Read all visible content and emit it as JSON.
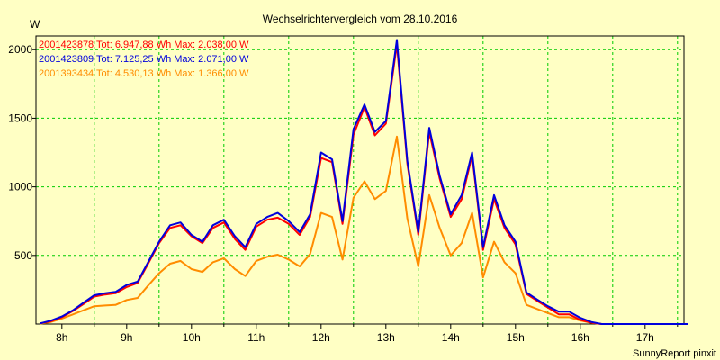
{
  "chart_data": {
    "type": "line",
    "title": "Wechselrichtervergleich vom 28.10.2016",
    "ylabel": "W",
    "xlabel": "",
    "footer": "SunnyReport pinxit",
    "ylim": [
      0,
      2100
    ],
    "xlim": [
      7.6,
      17.6
    ],
    "y_ticks": [
      500,
      1000,
      1500,
      2000
    ],
    "x_ticks": [
      8,
      9,
      10,
      11,
      12,
      13,
      14,
      15,
      16,
      17
    ],
    "x_tick_labels": [
      "8h",
      "9h",
      "10h",
      "11h",
      "12h",
      "13h",
      "14h",
      "15h",
      "16h",
      "17h"
    ],
    "x_minor_ticks": [
      8.5,
      9.5,
      10.5,
      11.5,
      12.5,
      13.5,
      14.5,
      15.5,
      16.5,
      17.5
    ],
    "grid": true,
    "grid_color": "#00cc00",
    "background_color": "#ffffc4",
    "legend_position": "top-left",
    "x": [
      7.67,
      7.83,
      8.0,
      8.17,
      8.33,
      8.5,
      8.67,
      8.83,
      9.0,
      9.17,
      9.33,
      9.5,
      9.67,
      9.83,
      10.0,
      10.17,
      10.33,
      10.5,
      10.67,
      10.83,
      11.0,
      11.17,
      11.33,
      11.5,
      11.67,
      11.83,
      12.0,
      12.17,
      12.33,
      12.5,
      12.67,
      12.83,
      13.0,
      13.17,
      13.33,
      13.5,
      13.67,
      13.83,
      14.0,
      14.17,
      14.33,
      14.5,
      14.67,
      14.83,
      15.0,
      15.17,
      15.33,
      15.5,
      15.67,
      15.83,
      16.0,
      16.17,
      16.33,
      16.5,
      16.67,
      16.83,
      17.0,
      17.17,
      17.33,
      17.5,
      17.67
    ],
    "series": [
      {
        "name": "2001423878",
        "label": "2001423878 Tot: 6.947,88 Wh Max: 2.038,00 W",
        "color": "#ff0000",
        "values": [
          5,
          20,
          50,
          95,
          145,
          200,
          215,
          225,
          270,
          300,
          440,
          590,
          700,
          720,
          640,
          590,
          700,
          740,
          620,
          540,
          710,
          760,
          775,
          730,
          650,
          780,
          1210,
          1180,
          730,
          1380,
          1580,
          1375,
          1460,
          2038,
          1170,
          650,
          1400,
          1060,
          780,
          910,
          1230,
          540,
          910,
          700,
          580,
          220,
          170,
          120,
          70,
          70,
          30,
          10,
          0,
          0,
          0,
          0,
          0,
          0,
          0,
          0,
          0
        ]
      },
      {
        "name": "2001423809",
        "label": "2001423809 Tot: 7.125,25 Wh Max: 2.071,00 W",
        "color": "#0000dd",
        "values": [
          5,
          25,
          55,
          100,
          155,
          210,
          225,
          235,
          285,
          310,
          450,
          600,
          720,
          740,
          650,
          600,
          720,
          760,
          640,
          560,
          730,
          780,
          810,
          750,
          670,
          800,
          1250,
          1200,
          750,
          1420,
          1600,
          1400,
          1480,
          2071,
          1190,
          670,
          1430,
          1080,
          800,
          940,
          1250,
          560,
          940,
          720,
          600,
          230,
          180,
          130,
          90,
          90,
          45,
          15,
          0,
          0,
          0,
          0,
          0,
          0,
          0,
          0,
          0
        ]
      },
      {
        "name": "2001393434",
        "label": "2001393434 Tot: 4.530,13 Wh Max: 1.366,00 W",
        "color": "#ff8c00",
        "values": [
          3,
          15,
          40,
          70,
          100,
          130,
          135,
          140,
          175,
          190,
          280,
          370,
          440,
          460,
          400,
          380,
          450,
          480,
          400,
          350,
          460,
          490,
          505,
          470,
          420,
          510,
          810,
          780,
          470,
          920,
          1040,
          910,
          970,
          1366,
          770,
          420,
          940,
          700,
          500,
          590,
          810,
          340,
          600,
          450,
          370,
          140,
          110,
          80,
          50,
          50,
          25,
          10,
          0,
          0,
          0,
          0,
          0,
          0,
          0,
          0,
          0
        ]
      }
    ]
  }
}
